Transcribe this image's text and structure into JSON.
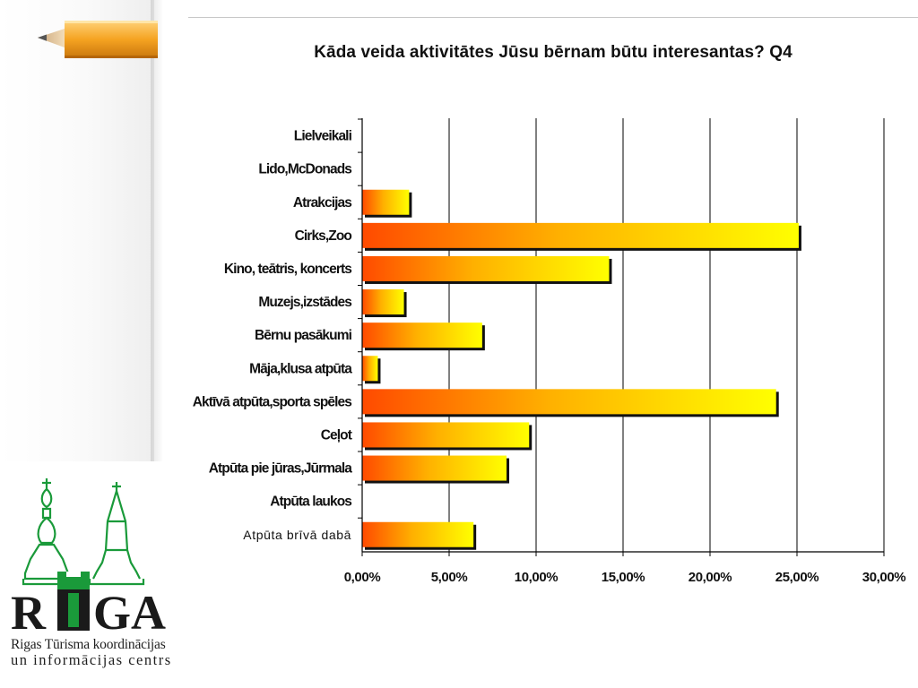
{
  "slide": {
    "title": "Kāda veida aktivitātes Jūsu bērnam būtu interesantas?  Q4"
  },
  "logo": {
    "wordmark": "RIGA",
    "line1": "Rigas Tūrisma koordinācijas",
    "line2": "un informācijas centrs",
    "colors": {
      "green": "#1a9a3a",
      "black": "#1a1a1a"
    }
  },
  "chart_data": {
    "type": "bar",
    "orientation": "horizontal",
    "title": "Kāda veida aktivitātes Jūsu bērnam būtu interesantas?  Q4",
    "categories": [
      "Lielveikali",
      "Lido,McDonads",
      "Atrakcijas",
      "Cirks,Zoo",
      "Kino, teātris, koncerts",
      "Muzejs,izstādes",
      "Bērnu pasākumi",
      "Māja,klusa atpūta",
      "Aktīvā atpūta,sporta spēles",
      "Ceļot",
      "Atpūta pie jūras,Jūrmala",
      "Atpūta laukos",
      "Atpūta brīvā dabā"
    ],
    "values": [
      0.0,
      0.0,
      2.7,
      25.1,
      14.2,
      2.4,
      6.9,
      0.9,
      23.8,
      9.6,
      8.3,
      0.0,
      6.4
    ],
    "xlim": [
      0,
      30
    ],
    "xticks": [
      "0,00%",
      "5,00%",
      "10,00%",
      "15,00%",
      "20,00%",
      "25,00%",
      "30,00%"
    ],
    "xtick_values": [
      0,
      5,
      10,
      15,
      20,
      25,
      30
    ],
    "grid": "vertical",
    "legend": "none",
    "colors": {
      "bar_start": "#ff4a00",
      "bar_mid": "#ffb000",
      "bar_end": "#ffff00",
      "shadow": "#111111"
    }
  }
}
